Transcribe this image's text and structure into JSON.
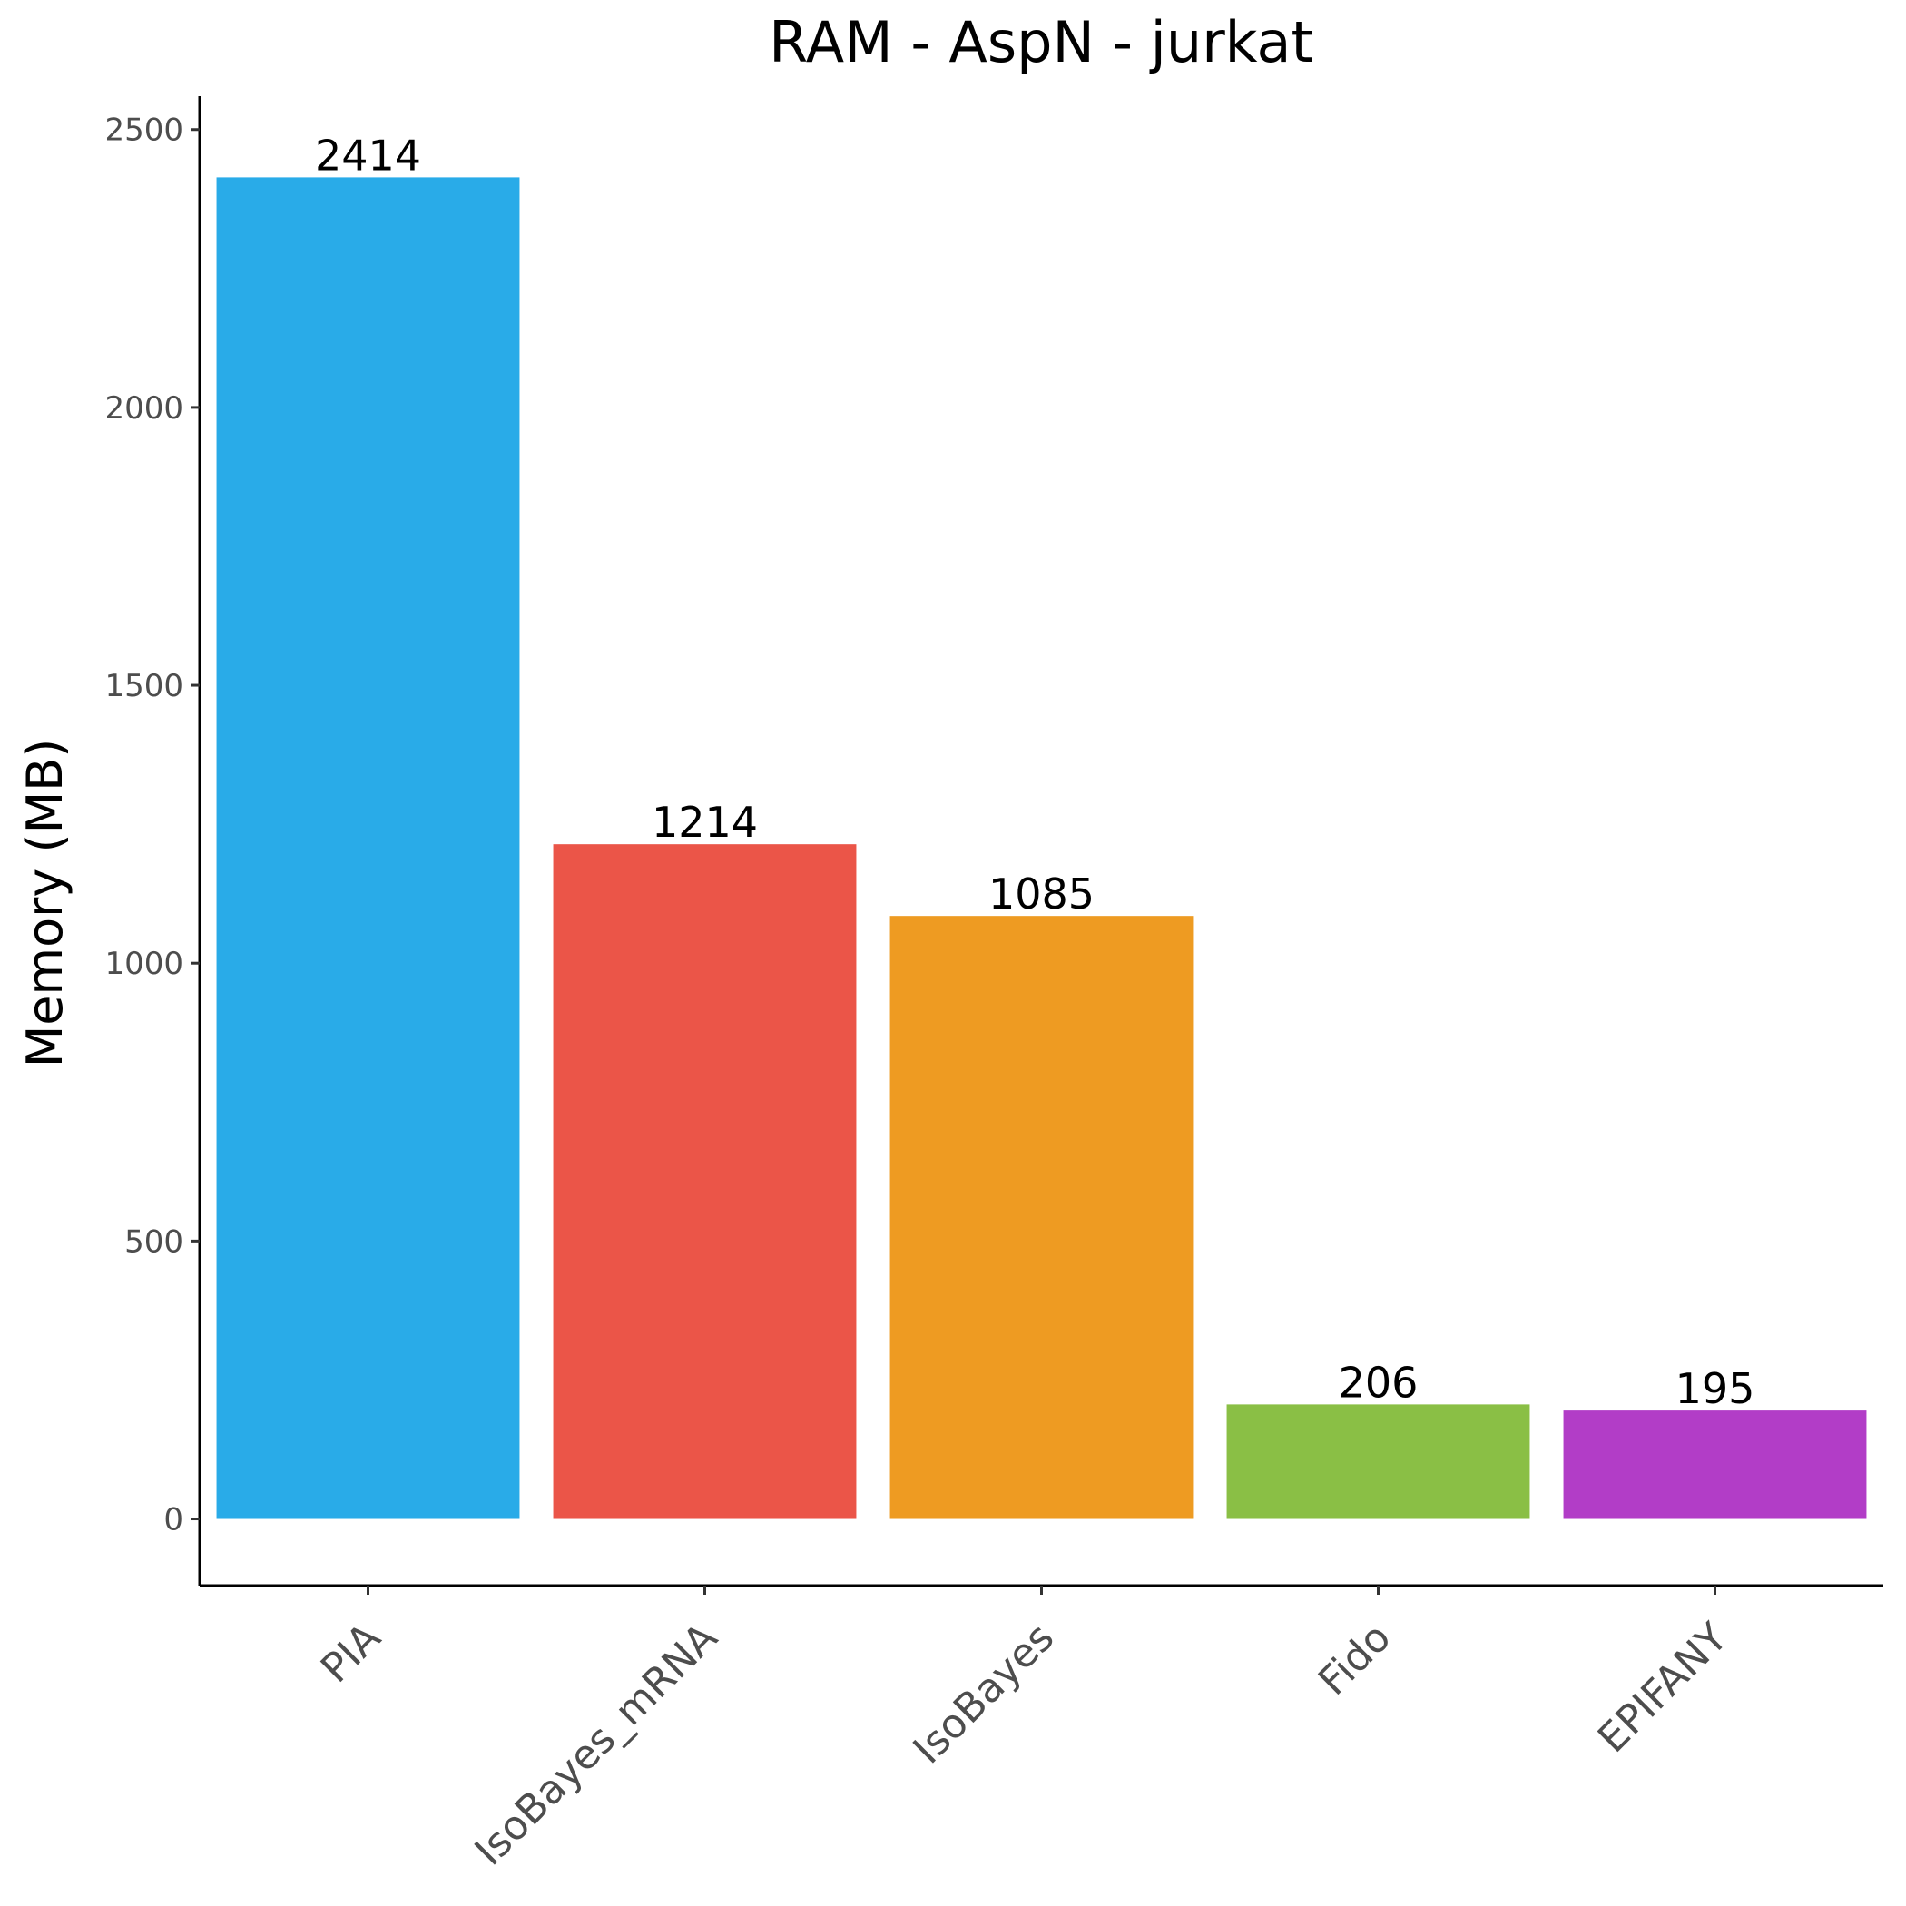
{
  "chart_data": {
    "type": "bar",
    "title": "RAM - AspN - jurkat",
    "xlabel": "",
    "ylabel": "Memory (MB)",
    "categories": [
      "PIA",
      "IsoBayes_mRNA",
      "IsoBayes",
      "Fido",
      "EPIFANY"
    ],
    "values": [
      2414,
      1214,
      1085,
      206,
      195
    ],
    "data_labels": [
      "2414",
      "1214",
      "1085",
      "206",
      "195"
    ],
    "colors": [
      "#29ABE8",
      "#EB5548",
      "#EE9B22",
      "#8ABF45",
      "#B23DC7"
    ],
    "ylim": [
      -120,
      2560
    ],
    "y_ticks": [
      0,
      500,
      1000,
      1500,
      2000,
      2500
    ],
    "y_tick_labels": [
      "0",
      "500",
      "1000",
      "1500",
      "2000",
      "2500"
    ],
    "grid": false,
    "legend": "none"
  }
}
